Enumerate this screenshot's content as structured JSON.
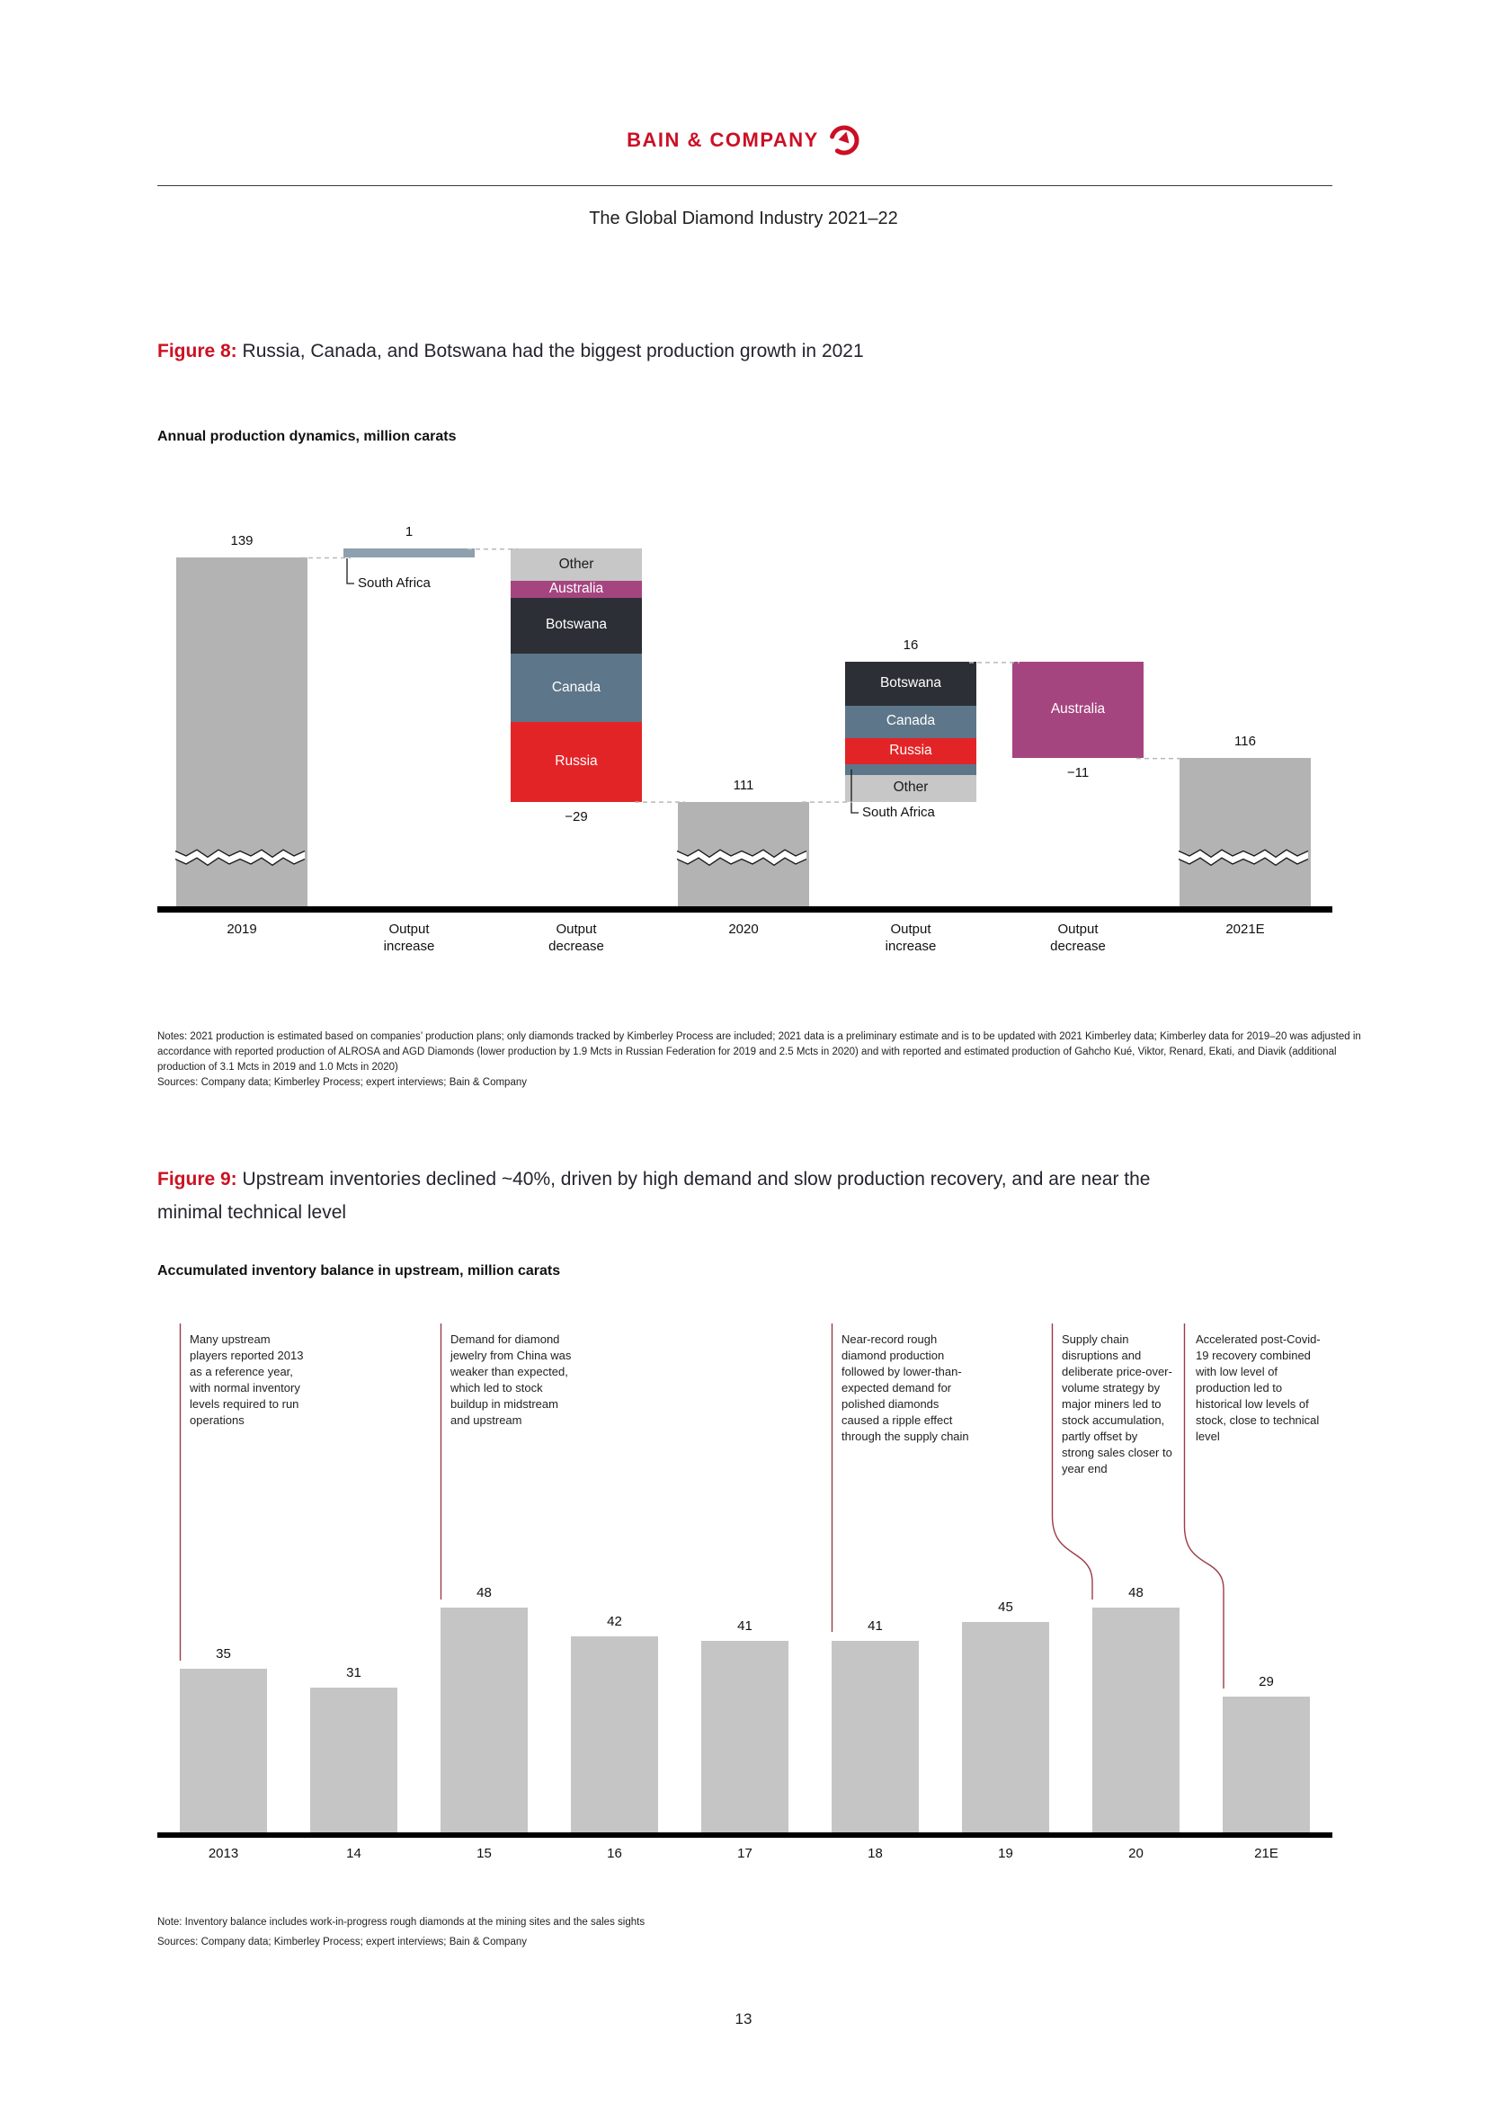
{
  "page": {
    "logo_text": "BAIN & COMPANY",
    "doc_title": "The Global Diamond Industry 2021–22",
    "page_number": "13"
  },
  "colors": {
    "bain_red": "#cc0f24",
    "annotation_line": "#9c3b46",
    "bar_gray": "#b3b3b3",
    "bar_gray_light": "#c5c5c5",
    "russia": "#e32427",
    "canada": "#5d7689",
    "botswana": "#2c3036",
    "australia": "#a5457f",
    "south_africa": "#8da0af",
    "other": "#c7c7c7"
  },
  "figure8": {
    "label": "Figure 8:",
    "title": "Russia, Canada, and Botswana had the biggest production growth in 2021",
    "subtitle": "Annual production dynamics, million carats",
    "notes": "Notes: 2021 production is estimated based on companies’ production plans; only diamonds tracked by Kimberley Process are included; 2021 data is a preliminary estimate and is to be updated with 2021 Kimberley data; Kimberley data for 2019–20 was adjusted in accordance with reported production of ALROSA and AGD Diamonds (lower production by 1.9 Mcts in Russian Federation for 2019 and 2.5 Mcts in 2020) and with reported and estimated production of Gahcho Kué, Viktor, Renard, Ekati, and Diavik (additional production of 3.1 Mcts in 2019 and 1.0 Mcts in 2020)",
    "sources": "Sources: Company data; Kimberley Process; expert interviews; Bain & Company",
    "chart_data": {
      "type": "waterfall",
      "title": "Annual production dynamics, million carats",
      "unit": "million carats",
      "categories": [
        "2019",
        "Output\nincrease",
        "Output\ndecrease",
        "2020",
        "Output\nincrease",
        "Output\ndecrease",
        "2021E"
      ],
      "columns": [
        {
          "kind": "total",
          "value": 139,
          "label": "139"
        },
        {
          "kind": "increase",
          "value": 1,
          "label": "1",
          "callout": "South Africa",
          "segments": [
            {
              "name": "South Africa",
              "value": 1,
              "color": "south_africa",
              "show_name": false,
              "text": "light"
            }
          ]
        },
        {
          "kind": "decrease",
          "value": -29,
          "label": "−29",
          "segments": [
            {
              "name": "Other",
              "value": 3.7,
              "color": "other",
              "show_name": true,
              "text": "dark"
            },
            {
              "name": "Australia",
              "value": 1.9,
              "color": "australia",
              "show_name": true,
              "text": "light"
            },
            {
              "name": "Botswana",
              "value": 6.4,
              "color": "botswana",
              "show_name": true,
              "text": "light"
            },
            {
              "name": "Canada",
              "value": 7.9,
              "color": "canada",
              "show_name": true,
              "text": "light"
            },
            {
              "name": "Russia",
              "value": 9.1,
              "color": "russia",
              "show_name": true,
              "text": "light"
            }
          ]
        },
        {
          "kind": "total",
          "value": 111,
          "label": "111"
        },
        {
          "kind": "increase",
          "value": 16,
          "label": "16",
          "callout": "South Africa",
          "segments": [
            {
              "name": "Botswana",
              "value": 5.0,
              "color": "botswana",
              "show_name": true,
              "text": "light"
            },
            {
              "name": "Canada",
              "value": 3.7,
              "color": "canada",
              "show_name": true,
              "text": "light"
            },
            {
              "name": "Russia",
              "value": 3.0,
              "color": "russia",
              "show_name": true,
              "text": "light"
            },
            {
              "name": "South Africa",
              "value": 1.2,
              "color": "canada",
              "show_name": false,
              "text": "light"
            },
            {
              "name": "Other",
              "value": 3.1,
              "color": "other",
              "show_name": true,
              "text": "dark"
            }
          ]
        },
        {
          "kind": "decrease",
          "value": -11,
          "label": "−11",
          "segments": [
            {
              "name": "Australia",
              "value": 11,
              "color": "australia",
              "show_name": true,
              "text": "light"
            }
          ]
        },
        {
          "kind": "total",
          "value": 116,
          "label": "116"
        }
      ]
    }
  },
  "figure9": {
    "label": "Figure 9:",
    "title": "Upstream inventories declined ~40%, driven by high demand and slow production recovery, and are near the minimal technical level",
    "subtitle": "Accumulated inventory balance in upstream, million carats",
    "note": "Note: Inventory balance includes work-in-progress rough diamonds at the mining sites and the sales sights",
    "sources": "Sources: Company data; Kimberley Process; expert interviews; Bain & Company",
    "chart_data": {
      "type": "bar",
      "title": "Accumulated inventory balance in upstream, million carats",
      "categories": [
        "2013",
        "14",
        "15",
        "16",
        "17",
        "18",
        "19",
        "20",
        "21E"
      ],
      "values": [
        35,
        31,
        48,
        42,
        41,
        41,
        45,
        48,
        29
      ],
      "ylim": [
        0,
        50
      ],
      "grid": false,
      "annotations": [
        {
          "target": "2013",
          "text": "Many upstream players reported 2013 as a reference year, with normal inventory levels required to run operations"
        },
        {
          "target": "15",
          "text": "Demand for diamond jewelry from China was weaker than expected, which led to stock buildup in midstream and upstream"
        },
        {
          "target": "18",
          "text": "Near-record rough diamond production followed by lower-than-expected demand for polished diamonds caused a ripple effect through the supply chain"
        },
        {
          "target": "20",
          "text": "Supply chain disruptions and deliberate price-over-volume strategy by major miners led to stock accumulation, partly offset by strong sales closer to year end"
        },
        {
          "target": "21E",
          "text": "Accelerated post-Covid-19 recovery combined with low level of production led to historical low levels of stock, close to technical level"
        }
      ]
    }
  }
}
